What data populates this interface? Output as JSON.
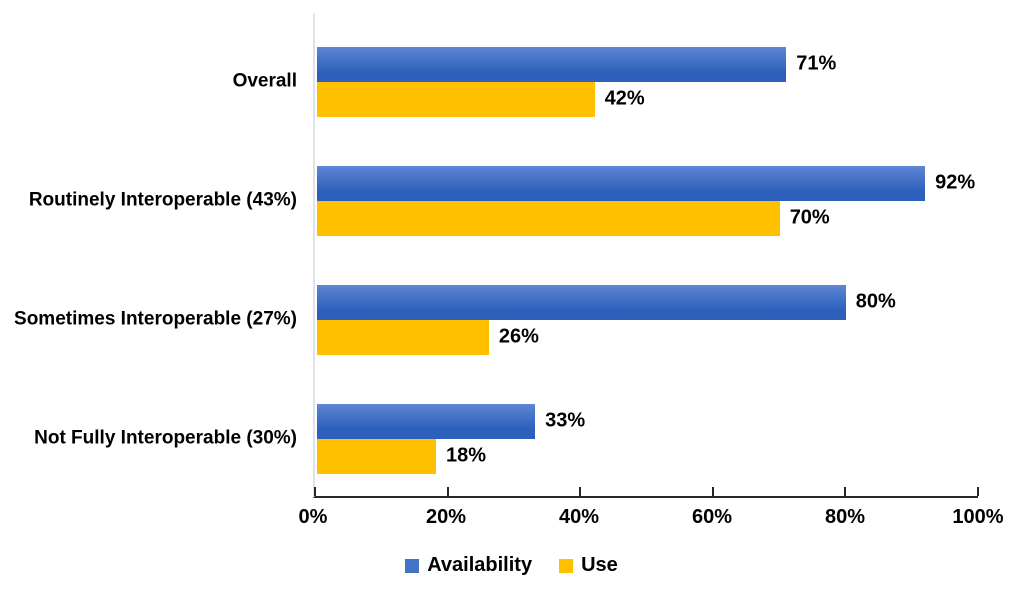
{
  "chart_data": {
    "type": "bar",
    "orientation": "horizontal",
    "title": "",
    "xlabel": "",
    "ylabel": "",
    "xlim": [
      0,
      100
    ],
    "grid": false,
    "categories": [
      "Overall",
      "Routinely Interoperable (43%)",
      "Sometimes Interoperable (27%)",
      "Not Fully Interoperable (30%)"
    ],
    "series": [
      {
        "name": "Availability",
        "color": "#4472C4",
        "values": [
          71,
          92,
          80,
          33
        ],
        "data_labels": [
          "71%",
          "92%",
          "80%",
          "33%"
        ]
      },
      {
        "name": "Use",
        "color": "#FFC000",
        "values": [
          42,
          70,
          26,
          18
        ],
        "data_labels": [
          "42%",
          "70%",
          "26%",
          "18%"
        ]
      }
    ],
    "x_tick_values": [
      0,
      20,
      40,
      60,
      80,
      100
    ],
    "x_tick_labels": [
      "0%",
      "20%",
      "40%",
      "60%",
      "80%",
      "100%"
    ],
    "legend": {
      "position": "bottom-center",
      "entries": [
        {
          "label": "Availability",
          "color": "#4472C4"
        },
        {
          "label": "Use",
          "color": "#FFC000"
        }
      ]
    }
  },
  "style": {
    "background": "#FFFFFF",
    "text_color": "#000000",
    "axis_color": "#262626",
    "y_axis_line_color": "#DCE3EF",
    "availability_gradient_top": "#5E86D4",
    "availability_gradient_bottom": "#2D60BA",
    "use_color": "#FFC000"
  }
}
